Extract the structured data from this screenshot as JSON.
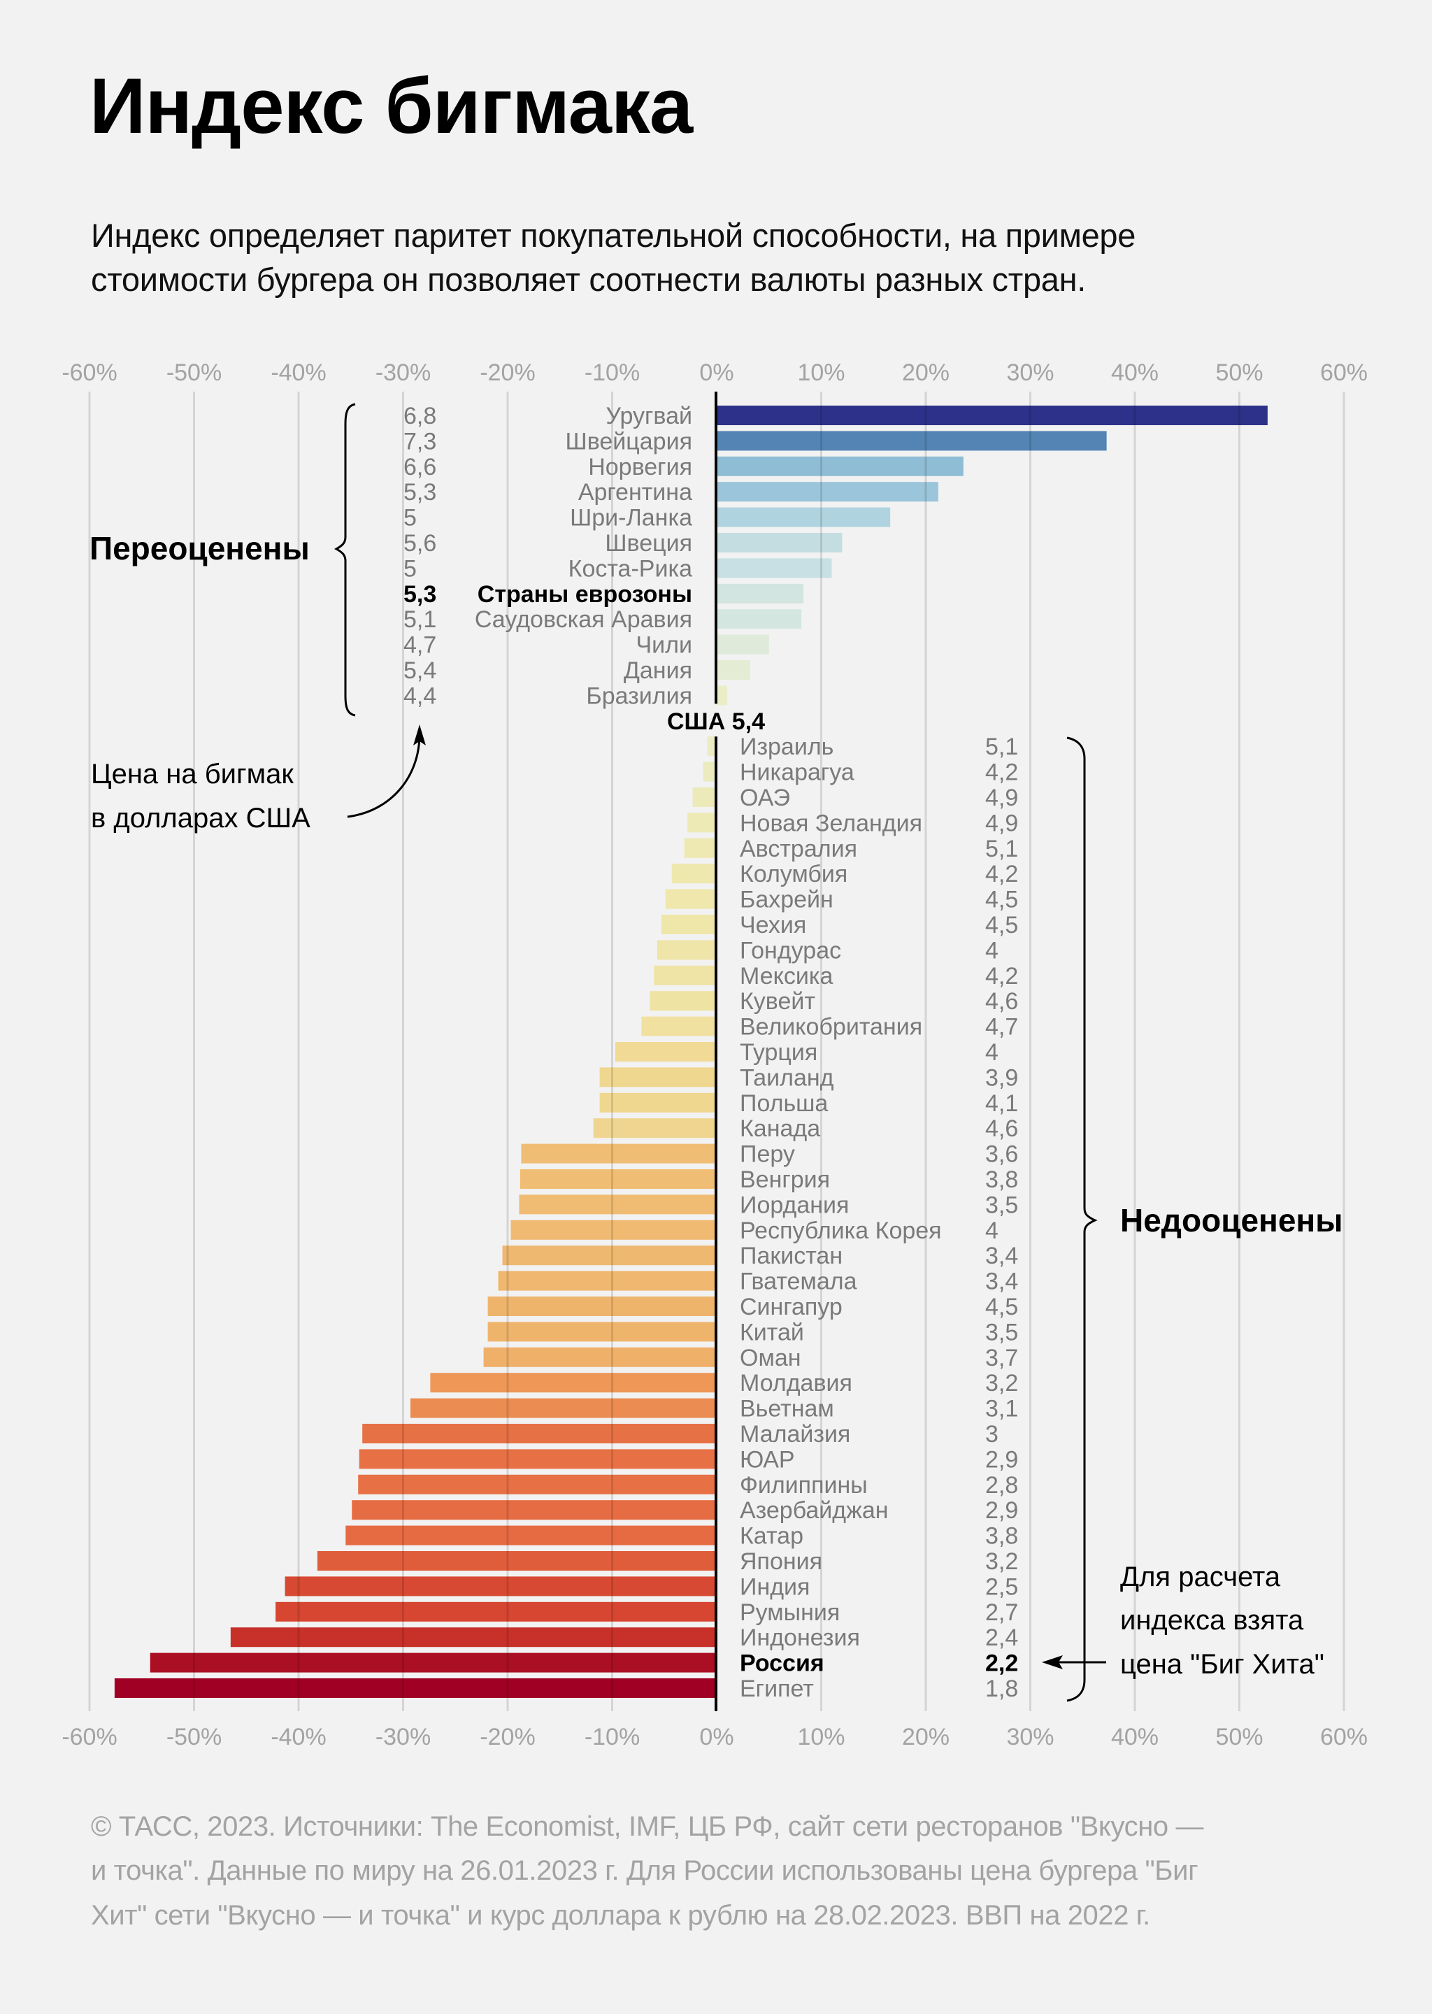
{
  "header": {
    "title": "Индекс бигмака",
    "subtitle_lines": [
      "Индекс определяет паритет покупательной способности, на примере",
      "стоимости бургера он позволяет соотнести валюты разных стран."
    ]
  },
  "annotations": {
    "overvalued_label": "Переоценены",
    "undervalued_label": "Недооценены",
    "price_note_lines": [
      "Цена на бигмак",
      "в долларах США"
    ],
    "russia_note_lines": [
      "Для расчета",
      "индекса взята",
      "цена \"Биг Хита\""
    ],
    "us_label": "США 5,4"
  },
  "footer": {
    "lines": [
      "© ТАСС, 2023. Источники: The Economist, IMF, ЦБ РФ, сайт сети ресторанов \"Вкусно —",
      "и точка\". Данные по миру на 26.01.2023 г. Для России использованы цена бургера \"Биг",
      "Хит\" сети \"Вкусно — и точка\" и курс доллара к рублю на 28.02.2023. ВВП на 2022 г."
    ]
  },
  "colors": {
    "background": "#f2f2f2",
    "axis": "#000000",
    "grid": "#d4d4d4",
    "label_gray": "#7a7a7a",
    "tick_gray": "#a3a3a3"
  },
  "chart_data": {
    "type": "bar",
    "orientation": "horizontal",
    "title": "Индекс бигмака",
    "xlabel": "",
    "ylabel": "",
    "xlim": [
      -60,
      60
    ],
    "x_unit": "%",
    "grid": true,
    "x_ticks": [
      "-60%",
      "-50%",
      "-40%",
      "-30%",
      "-20%",
      "-10%",
      "0%",
      "10%",
      "20%",
      "30%",
      "40%",
      "50%",
      "60%"
    ],
    "baseline": {
      "country": "США",
      "price": "5,4"
    },
    "overvalued": [
      {
        "country": "Уругвай",
        "price": "6,8",
        "value": 52.7,
        "color": "#2e3189"
      },
      {
        "country": "Швейцария",
        "price": "7,3",
        "value": 37.3,
        "color": "#5384b4"
      },
      {
        "country": "Норвегия",
        "price": "6,6",
        "value": 23.6,
        "color": "#8fbdd6"
      },
      {
        "country": "Аргентина",
        "price": "5,3",
        "value": 21.2,
        "color": "#9bc5da"
      },
      {
        "country": "Шри-Ланка",
        "price": "5",
        "value": 16.6,
        "color": "#b0d4df"
      },
      {
        "country": "Швеция",
        "price": "5,6",
        "value": 12.0,
        "color": "#c4dde1"
      },
      {
        "country": "Коста-Рика",
        "price": "5",
        "value": 11.0,
        "color": "#c8e0e3"
      },
      {
        "country": "Страны еврозоны",
        "price": "5,3",
        "value": 8.3,
        "color": "#d2e5e0",
        "bold": true
      },
      {
        "country": "Саудовская Аравия",
        "price": "5,1",
        "value": 8.1,
        "color": "#d3e6e0"
      },
      {
        "country": "Чили",
        "price": "4,7",
        "value": 5.0,
        "color": "#dfeadb"
      },
      {
        "country": "Дания",
        "price": "5,4",
        "value": 3.2,
        "color": "#e4ecd3"
      },
      {
        "country": "Бразилия",
        "price": "4,4",
        "value": 1.0,
        "color": "#e9eec6"
      }
    ],
    "undervalued": [
      {
        "country": "Израиль",
        "price": "5,1",
        "value": -0.9,
        "color": "#ebecc4"
      },
      {
        "country": "Никарагуа",
        "price": "4,2",
        "value": -1.3,
        "color": "#ebebbf"
      },
      {
        "country": "ОАЭ",
        "price": "4,9",
        "value": -2.3,
        "color": "#eceab8"
      },
      {
        "country": "Новая Зеландия",
        "price": "4,9",
        "value": -2.8,
        "color": "#eeeab5"
      },
      {
        "country": "Австралия",
        "price": "5,1",
        "value": -3.1,
        "color": "#eee9b2"
      },
      {
        "country": "Колумбия",
        "price": "4,2",
        "value": -4.3,
        "color": "#efe8ae"
      },
      {
        "country": "Бахрейн",
        "price": "4,5",
        "value": -4.9,
        "color": "#efe7ab"
      },
      {
        "country": "Чехия",
        "price": "4,5",
        "value": -5.3,
        "color": "#efe6aa"
      },
      {
        "country": "Гондурас",
        "price": "4",
        "value": -5.7,
        "color": "#efe5a8"
      },
      {
        "country": "Мексика",
        "price": "4,2",
        "value": -6.0,
        "color": "#efe4a6"
      },
      {
        "country": "Кувейт",
        "price": "4,6",
        "value": -6.4,
        "color": "#efe3a4"
      },
      {
        "country": "Великобритания",
        "price": "4,7",
        "value": -7.2,
        "color": "#f0e1a1"
      },
      {
        "country": "Турция",
        "price": "4",
        "value": -9.7,
        "color": "#f0da96"
      },
      {
        "country": "Таиланд",
        "price": "3,9",
        "value": -11.2,
        "color": "#f0d790"
      },
      {
        "country": "Польша",
        "price": "4,1",
        "value": -11.2,
        "color": "#f0d790"
      },
      {
        "country": "Канада",
        "price": "4,6",
        "value": -11.8,
        "color": "#f0d590"
      },
      {
        "country": "Перу",
        "price": "3,6",
        "value": -18.7,
        "color": "#f0bd74"
      },
      {
        "country": "Венгрия",
        "price": "3,8",
        "value": -18.8,
        "color": "#f0bd74"
      },
      {
        "country": "Иордания",
        "price": "3,5",
        "value": -18.9,
        "color": "#f0bc73"
      },
      {
        "country": "Республика Корея",
        "price": "4",
        "value": -19.7,
        "color": "#f0ba72"
      },
      {
        "country": "Пакистан",
        "price": "3,4",
        "value": -20.5,
        "color": "#efb870"
      },
      {
        "country": "Гватемала",
        "price": "3,4",
        "value": -20.9,
        "color": "#efb76f"
      },
      {
        "country": "Сингапур",
        "price": "4,5",
        "value": -21.9,
        "color": "#efb46c"
      },
      {
        "country": "Китай",
        "price": "3,5",
        "value": -21.9,
        "color": "#efb46c"
      },
      {
        "country": "Оман",
        "price": "3,7",
        "value": -22.3,
        "color": "#efb06a"
      },
      {
        "country": "Молдавия",
        "price": "3,2",
        "value": -27.4,
        "color": "#ee9757"
      },
      {
        "country": "Вьетнам",
        "price": "3,1",
        "value": -29.3,
        "color": "#eb8c52"
      },
      {
        "country": "Малайзия",
        "price": "3",
        "value": -33.9,
        "color": "#e67144"
      },
      {
        "country": "ЮАР",
        "price": "2,9",
        "value": -34.2,
        "color": "#e77045"
      },
      {
        "country": "Филиппины",
        "price": "2,8",
        "value": -34.3,
        "color": "#e77045"
      },
      {
        "country": "Азербайджан",
        "price": "2,9",
        "value": -34.9,
        "color": "#e66c43"
      },
      {
        "country": "Катар",
        "price": "3,8",
        "value": -35.5,
        "color": "#e66a42"
      },
      {
        "country": "Япония",
        "price": "3,2",
        "value": -38.2,
        "color": "#e05d3b"
      },
      {
        "country": "Индия",
        "price": "2,5",
        "value": -41.3,
        "color": "#d74932"
      },
      {
        "country": "Румыния",
        "price": "2,7",
        "value": -42.2,
        "color": "#d64631"
      },
      {
        "country": "Индонезия",
        "price": "2,4",
        "value": -46.5,
        "color": "#c8302a"
      },
      {
        "country": "Россия",
        "price": "2,2",
        "value": -54.2,
        "color": "#ab0f24",
        "bold": true
      },
      {
        "country": "Египет",
        "price": "1,8",
        "value": -57.6,
        "color": "#a00024"
      }
    ]
  }
}
